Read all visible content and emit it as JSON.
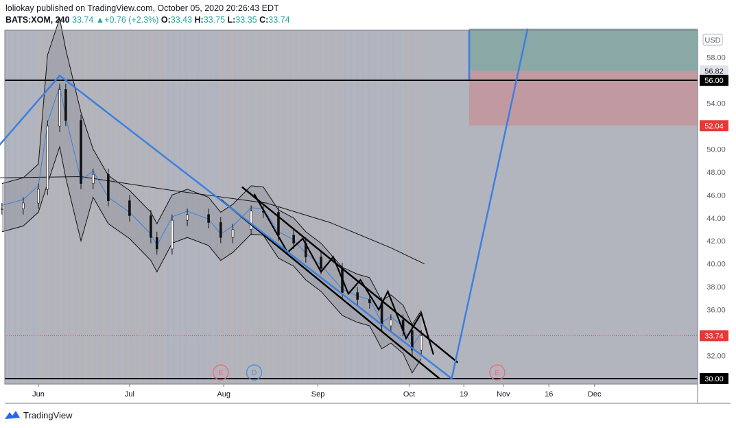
{
  "header": {
    "publisher_line": "loliokay published on TradingView.com, October 05, 2020 20:26:43 EDT",
    "symbol": "BATS:XOM, 240",
    "last": "33.74",
    "change": "+0.76 (+2.3%)",
    "open_label": "O:",
    "open": "33.43",
    "high_label": "H:",
    "high": "33.75",
    "low_label": "L:",
    "low": "33.35",
    "close_label": "C:",
    "close": "33.74"
  },
  "footer": {
    "brand": "TradingView"
  },
  "colors": {
    "plot_bg": "#b2b5be",
    "band_fill": "#9598a1",
    "blue_line": "#3d7fe0",
    "green_zone": "#8aa8a6",
    "red_zone": "#c09aa0",
    "price_line": "#e53935",
    "up": "#26a69a"
  },
  "chart_data": {
    "type": "candlestick",
    "currency_label": "USD",
    "y_ticks": [
      "32.00",
      "34.00",
      "36.00",
      "38.00",
      "40.00",
      "42.00",
      "44.00",
      "46.00",
      "48.00",
      "50.00",
      "52.00",
      "54.00",
      "58.00"
    ],
    "price_labels": [
      {
        "value": 56.82,
        "text": "56.82",
        "style": "neutral"
      },
      {
        "value": 56.0,
        "text": "56.00",
        "style": "black"
      },
      {
        "value": 52.04,
        "text": "52.04",
        "style": "red"
      },
      {
        "value": 33.74,
        "text": "33.74",
        "style": "red"
      },
      {
        "value": 30.0,
        "text": "30.00",
        "style": "black"
      }
    ],
    "x_labels": [
      "Jun",
      "Jul",
      "Aug",
      "Sep",
      "Oct",
      "19",
      "Nov",
      "16",
      "Dec"
    ],
    "event_markers": [
      {
        "label": "E",
        "kind": "earnings"
      },
      {
        "label": "D",
        "kind": "dividend"
      },
      {
        "label": "E",
        "kind": "earnings"
      }
    ],
    "zigzag_path": [
      {
        "date": "2020-05-19",
        "price": 50.3
      },
      {
        "date": "2020-06-08",
        "price": 56.4
      },
      {
        "date": "2020-10-15",
        "price": 30.0
      },
      {
        "date": "2020-11-09",
        "price": 60.5
      }
    ],
    "horizontal_levels": [
      56.0,
      30.0
    ],
    "target_zone": {
      "entry": 56.82,
      "stop": 52.04,
      "target_top": 60.5
    },
    "close_series": [
      {
        "date": "2020-05-20",
        "close": 44.8
      },
      {
        "date": "2020-05-27",
        "close": 45.3
      },
      {
        "date": "2020-06-01",
        "close": 46.5
      },
      {
        "date": "2020-06-04",
        "close": 52.0
      },
      {
        "date": "2020-06-08",
        "close": 55.2
      },
      {
        "date": "2020-06-10",
        "close": 52.5
      },
      {
        "date": "2020-06-15",
        "close": 47.0
      },
      {
        "date": "2020-06-19",
        "close": 47.8
      },
      {
        "date": "2020-06-24",
        "close": 45.5
      },
      {
        "date": "2020-07-01",
        "close": 44.2
      },
      {
        "date": "2020-07-08",
        "close": 42.3
      },
      {
        "date": "2020-07-10",
        "close": 41.3
      },
      {
        "date": "2020-07-15",
        "close": 43.8
      },
      {
        "date": "2020-07-20",
        "close": 44.3
      },
      {
        "date": "2020-07-27",
        "close": 43.6
      },
      {
        "date": "2020-07-31",
        "close": 42.3
      },
      {
        "date": "2020-08-04",
        "close": 43.0
      },
      {
        "date": "2020-08-10",
        "close": 44.6
      },
      {
        "date": "2020-08-14",
        "close": 44.5
      },
      {
        "date": "2020-08-19",
        "close": 42.5
      },
      {
        "date": "2020-08-24",
        "close": 41.8
      },
      {
        "date": "2020-08-28",
        "close": 40.6
      },
      {
        "date": "2020-09-02",
        "close": 39.6
      },
      {
        "date": "2020-09-09",
        "close": 37.5
      },
      {
        "date": "2020-09-14",
        "close": 36.9
      },
      {
        "date": "2020-09-18",
        "close": 36.6
      },
      {
        "date": "2020-09-22",
        "close": 34.6
      },
      {
        "date": "2020-09-25",
        "close": 35.1
      },
      {
        "date": "2020-09-29",
        "close": 34.2
      },
      {
        "date": "2020-10-02",
        "close": 32.5
      },
      {
        "date": "2020-10-05",
        "close": 33.74
      }
    ]
  }
}
